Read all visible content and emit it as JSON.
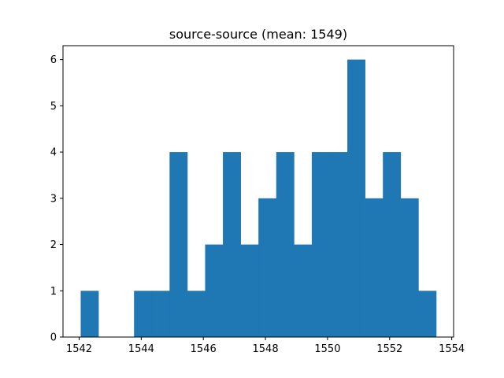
{
  "chart_data": {
    "type": "bar",
    "title": "source-source (mean: 1549)",
    "xlabel": "",
    "ylabel": "",
    "xlim": [
      1541.48,
      1554.06
    ],
    "ylim": [
      0,
      6.3
    ],
    "grid": false,
    "x_ticks": [
      1542,
      1544,
      1546,
      1548,
      1550,
      1552,
      1554
    ],
    "y_ticks": [
      0,
      1,
      2,
      3,
      4,
      5,
      6
    ],
    "bins": {
      "start": 1542.05,
      "end": 1553.5,
      "count": 20
    },
    "values": [
      1,
      0,
      0,
      1,
      1,
      4,
      1,
      2,
      4,
      2,
      3,
      4,
      2,
      4,
      4,
      6,
      3,
      4,
      3,
      1
    ],
    "colors": {
      "bar": "#1f77b4",
      "axis": "#000000",
      "background": "#ffffff"
    }
  }
}
